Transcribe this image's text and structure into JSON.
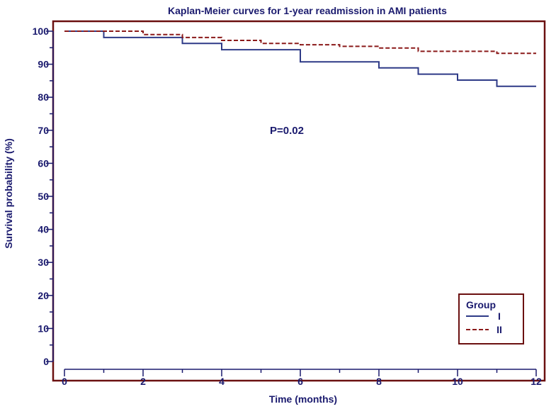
{
  "chart_data": {
    "type": "line",
    "step": true,
    "title": "Kaplan-Meier curves for 1-year readmission in AMI patients",
    "xlabel": "Time (months)",
    "ylabel": "Survival probability (%)",
    "xlim": [
      0,
      12
    ],
    "ylim": [
      0,
      100
    ],
    "xticks": [
      0,
      2,
      4,
      6,
      8,
      10,
      12
    ],
    "yticks": [
      0,
      10,
      20,
      30,
      40,
      50,
      60,
      70,
      80,
      90,
      100
    ],
    "grid": false,
    "annotation": "P=0.02",
    "legend": {
      "title": "Group",
      "position": "bottom-right"
    },
    "series": [
      {
        "name": "I",
        "color": "#2e3a87",
        "dash": "solid",
        "x": [
          0,
          1,
          3,
          4,
          6,
          8,
          9,
          10,
          11,
          12
        ],
        "y": [
          100,
          98.1,
          96.3,
          94.4,
          90.7,
          88.9,
          87.0,
          85.2,
          83.3,
          83.3
        ]
      },
      {
        "name": "II",
        "color": "#8b1a1a",
        "dash": "dashed",
        "x": [
          0,
          2,
          3,
          4,
          5,
          6,
          7,
          8,
          9,
          11,
          12
        ],
        "y": [
          100,
          99.0,
          98.1,
          97.2,
          96.3,
          95.9,
          95.4,
          94.9,
          93.9,
          93.3,
          93.3
        ]
      }
    ]
  }
}
